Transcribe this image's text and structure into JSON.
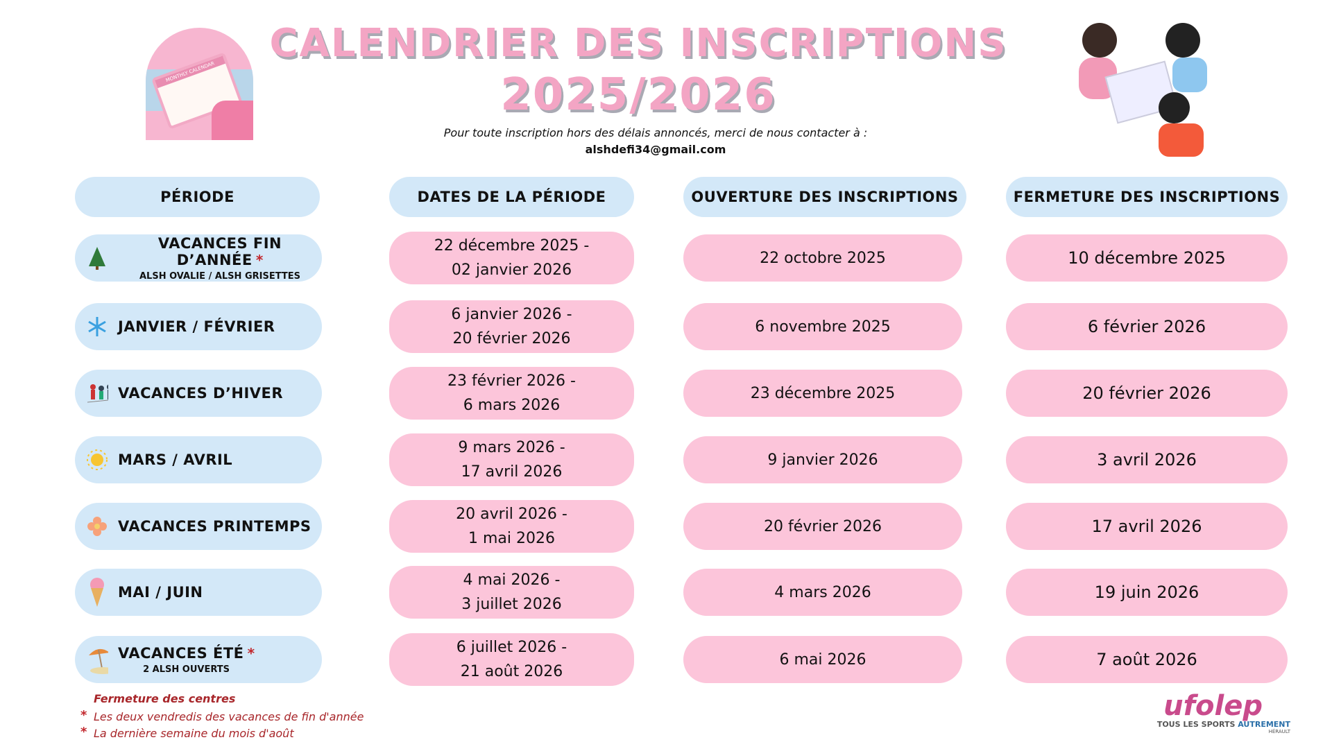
{
  "header": {
    "title_line1": "CALENDRIER DES INSCRIPTIONS",
    "title_line2": "2025/2026",
    "subtitle": "Pour toute inscription hors des délais annoncés, merci de nous contacter à :",
    "email": "alshdefi34@gmail.com",
    "calendar_image_text": "MONTHLY CALENDAR"
  },
  "columns": [
    "PÉRIODE",
    "DATES DE LA PÉRIODE",
    "OUVERTURE DES INSCRIPTIONS",
    "FERMETURE DES INSCRIPTIONS"
  ],
  "rows": [
    {
      "period": "VACANCES FIN D’ANNÉE",
      "note": "ALSH OVALIE / ALSH GRISETTES",
      "star": "*",
      "icon": "christmas-tree-icon",
      "date_start": "22 décembre 2025 -",
      "date_end": "02 janvier 2026",
      "open": "22 octobre 2025",
      "close": "10 décembre 2025"
    },
    {
      "period": "JANVIER / FÉVRIER",
      "icon": "snowflake-icon",
      "date_start": "6 janvier 2026 -",
      "date_end": "20 février 2026",
      "open": "6 novembre 2025",
      "close": "6 février 2026"
    },
    {
      "period": "VACANCES D’HIVER",
      "icon": "skiers-icon",
      "date_start": "23 février 2026 -",
      "date_end": "6 mars 2026",
      "open": "23 décembre 2025",
      "close": "20 février 2026"
    },
    {
      "period": "MARS / AVRIL",
      "icon": "sun-icon",
      "date_start": "9 mars 2026 -",
      "date_end": "17 avril 2026",
      "open": "9 janvier 2026",
      "close": "3 avril 2026"
    },
    {
      "period": "VACANCES PRINTEMPS",
      "icon": "flower-icon",
      "date_start": "20 avril 2026 -",
      "date_end": "1 mai 2026",
      "open": "20 février 2026",
      "close": "17 avril 2026"
    },
    {
      "period": "MAI / JUIN",
      "icon": "ice-cream-icon",
      "date_start": "4 mai 2026 -",
      "date_end": "3 juillet 2026",
      "open": "4 mars 2026",
      "close": "19 juin 2026"
    },
    {
      "period": "VACANCES ÉTÉ",
      "note": "2 ALSH OUVERTS",
      "star": "*",
      "icon": "beach-umbrella-icon",
      "date_start": "6 juillet 2026 -",
      "date_end": "21 août 2026",
      "open": "6 mai 2026",
      "close": "7 août 2026"
    }
  ],
  "footer": {
    "heading": "Fermeture des centres",
    "star": "*",
    "notes": [
      "Les deux vendredis des vacances de fin d'année",
      "La dernière semaine du mois d'août"
    ]
  },
  "logo": {
    "name": "ufolep",
    "tagline_left": "TOUS LES SPORTS",
    "tagline_right": "AUTREMENT",
    "region": "HÉRAULT"
  }
}
